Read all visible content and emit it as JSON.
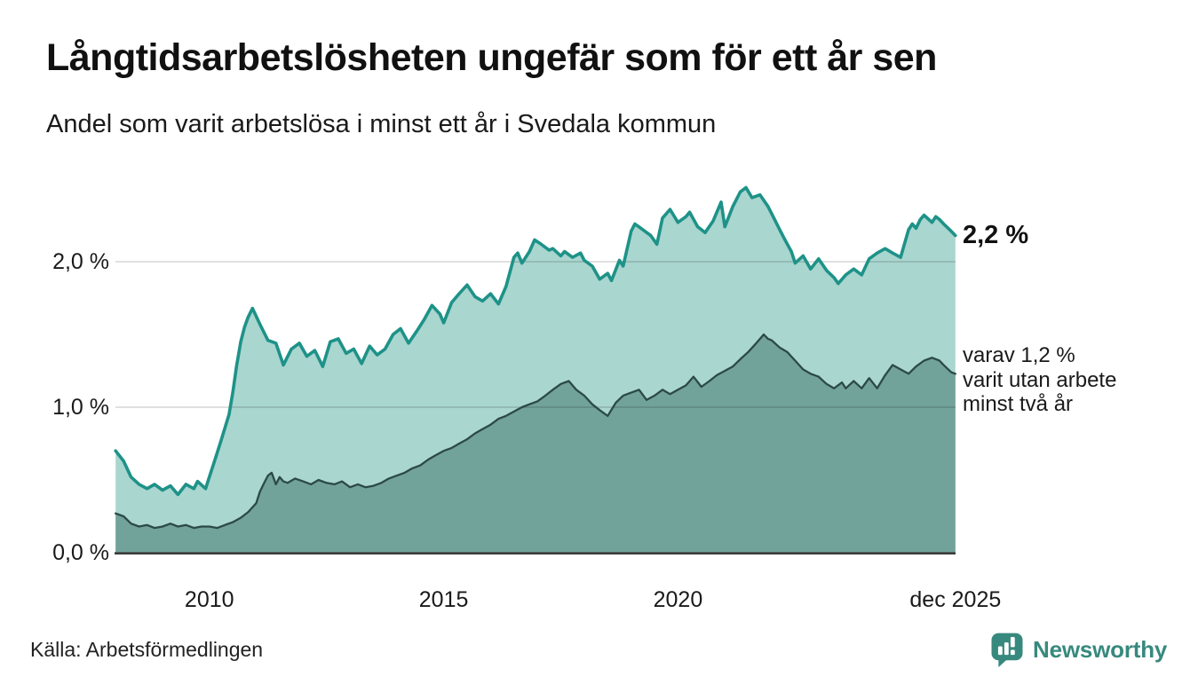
{
  "header": {
    "title": "Långtidsarbetslösheten ungefär som för ett år sen",
    "subtitle": "Andel som varit arbetslösa i minst ett år i Svedala kommun"
  },
  "footer": {
    "source": "Källa: Arbetsförmedlingen",
    "brand": "Newsworthy",
    "brand_color": "#37897e"
  },
  "chart_data": {
    "type": "area",
    "title": "Långtidsarbetslösheten ungefär som för ett år sen",
    "subtitle": "Andel som varit arbetslösa i minst ett år i Svedala kommun",
    "unit": "%",
    "grid": "horizontal",
    "x_axis": {
      "range_years": [
        2008.0,
        2025.92
      ],
      "ticks": [
        {
          "label": "2010",
          "t": 2010.0
        },
        {
          "label": "2015",
          "t": 2015.0
        },
        {
          "label": "2020",
          "t": 2020.0
        },
        {
          "label": "dec 2025",
          "t": 2025.92
        }
      ]
    },
    "y_axis": {
      "ylim": [
        0,
        2.62
      ],
      "ticks": [
        {
          "label": "2,0 %",
          "value": 2.0
        },
        {
          "label": "1,0 %",
          "value": 1.0
        },
        {
          "label": "0,0 %",
          "value": 0.0
        }
      ]
    },
    "annotations": {
      "end_value_label": "2,2 %",
      "end_value": 2.18,
      "note_lines": [
        "varav 1,2 %",
        "varit utan arbete",
        "minst två år"
      ]
    },
    "colors": {
      "line_one_year": "#1e9288",
      "fill_one_year": "#a9d6cf",
      "line_two_years": "#2c4a45",
      "fill_two_years": "#72a39b",
      "gridline": "rgba(0,0,0,0.14)",
      "baseline": "#3c3c3c"
    },
    "series": [
      {
        "name": "andel arbetslösa minst ett år",
        "end_value_pct": 2.2,
        "points": [
          [
            2008.0,
            0.7
          ],
          [
            2008.17,
            0.63
          ],
          [
            2008.33,
            0.52
          ],
          [
            2008.5,
            0.47
          ],
          [
            2008.67,
            0.44
          ],
          [
            2008.83,
            0.47
          ],
          [
            2009.0,
            0.43
          ],
          [
            2009.17,
            0.46
          ],
          [
            2009.33,
            0.4
          ],
          [
            2009.5,
            0.47
          ],
          [
            2009.67,
            0.44
          ],
          [
            2009.75,
            0.49
          ],
          [
            2009.92,
            0.44
          ],
          [
            2010.0,
            0.52
          ],
          [
            2010.08,
            0.6
          ],
          [
            2010.25,
            0.77
          ],
          [
            2010.42,
            0.95
          ],
          [
            2010.5,
            1.1
          ],
          [
            2010.58,
            1.28
          ],
          [
            2010.67,
            1.45
          ],
          [
            2010.75,
            1.55
          ],
          [
            2010.83,
            1.62
          ],
          [
            2010.92,
            1.68
          ],
          [
            2011.08,
            1.57
          ],
          [
            2011.25,
            1.46
          ],
          [
            2011.42,
            1.44
          ],
          [
            2011.58,
            1.29
          ],
          [
            2011.75,
            1.4
          ],
          [
            2011.92,
            1.44
          ],
          [
            2012.08,
            1.35
          ],
          [
            2012.25,
            1.39
          ],
          [
            2012.42,
            1.28
          ],
          [
            2012.58,
            1.45
          ],
          [
            2012.75,
            1.47
          ],
          [
            2012.92,
            1.37
          ],
          [
            2013.08,
            1.4
          ],
          [
            2013.25,
            1.3
          ],
          [
            2013.42,
            1.42
          ],
          [
            2013.58,
            1.36
          ],
          [
            2013.75,
            1.4
          ],
          [
            2013.92,
            1.5
          ],
          [
            2014.08,
            1.54
          ],
          [
            2014.25,
            1.44
          ],
          [
            2014.42,
            1.52
          ],
          [
            2014.58,
            1.6
          ],
          [
            2014.75,
            1.7
          ],
          [
            2014.92,
            1.64
          ],
          [
            2015.0,
            1.58
          ],
          [
            2015.17,
            1.72
          ],
          [
            2015.33,
            1.78
          ],
          [
            2015.5,
            1.84
          ],
          [
            2015.67,
            1.76
          ],
          [
            2015.83,
            1.73
          ],
          [
            2016.0,
            1.78
          ],
          [
            2016.17,
            1.71
          ],
          [
            2016.33,
            1.83
          ],
          [
            2016.5,
            2.03
          ],
          [
            2016.58,
            2.06
          ],
          [
            2016.67,
            1.99
          ],
          [
            2016.83,
            2.07
          ],
          [
            2016.94,
            2.15
          ],
          [
            2017.08,
            2.12
          ],
          [
            2017.25,
            2.08
          ],
          [
            2017.33,
            2.09
          ],
          [
            2017.5,
            2.04
          ],
          [
            2017.58,
            2.07
          ],
          [
            2017.75,
            2.03
          ],
          [
            2017.92,
            2.06
          ],
          [
            2018.0,
            2.01
          ],
          [
            2018.17,
            1.97
          ],
          [
            2018.33,
            1.88
          ],
          [
            2018.5,
            1.92
          ],
          [
            2018.58,
            1.87
          ],
          [
            2018.75,
            2.01
          ],
          [
            2018.83,
            1.97
          ],
          [
            2019.0,
            2.21
          ],
          [
            2019.08,
            2.26
          ],
          [
            2019.25,
            2.22
          ],
          [
            2019.42,
            2.18
          ],
          [
            2019.55,
            2.12
          ],
          [
            2019.67,
            2.3
          ],
          [
            2019.83,
            2.36
          ],
          [
            2020.0,
            2.27
          ],
          [
            2020.17,
            2.31
          ],
          [
            2020.25,
            2.34
          ],
          [
            2020.42,
            2.24
          ],
          [
            2020.58,
            2.2
          ],
          [
            2020.75,
            2.28
          ],
          [
            2020.92,
            2.41
          ],
          [
            2021.0,
            2.24
          ],
          [
            2021.17,
            2.38
          ],
          [
            2021.33,
            2.48
          ],
          [
            2021.45,
            2.51
          ],
          [
            2021.58,
            2.44
          ],
          [
            2021.75,
            2.46
          ],
          [
            2021.92,
            2.38
          ],
          [
            2022.0,
            2.33
          ],
          [
            2022.17,
            2.22
          ],
          [
            2022.25,
            2.17
          ],
          [
            2022.42,
            2.07
          ],
          [
            2022.5,
            1.99
          ],
          [
            2022.67,
            2.04
          ],
          [
            2022.83,
            1.95
          ],
          [
            2023.0,
            2.02
          ],
          [
            2023.17,
            1.94
          ],
          [
            2023.33,
            1.89
          ],
          [
            2023.42,
            1.85
          ],
          [
            2023.58,
            1.91
          ],
          [
            2023.75,
            1.95
          ],
          [
            2023.92,
            1.91
          ],
          [
            2024.08,
            2.02
          ],
          [
            2024.25,
            2.06
          ],
          [
            2024.42,
            2.09
          ],
          [
            2024.58,
            2.06
          ],
          [
            2024.75,
            2.03
          ],
          [
            2024.92,
            2.22
          ],
          [
            2025.0,
            2.26
          ],
          [
            2025.08,
            2.23
          ],
          [
            2025.17,
            2.29
          ],
          [
            2025.25,
            2.32
          ],
          [
            2025.42,
            2.27
          ],
          [
            2025.5,
            2.31
          ],
          [
            2025.58,
            2.29
          ],
          [
            2025.67,
            2.26
          ],
          [
            2025.83,
            2.21
          ],
          [
            2025.92,
            2.18
          ]
        ]
      },
      {
        "name": "varav utan arbete minst två år",
        "end_value_pct": 1.2,
        "points": [
          [
            2008.0,
            0.27
          ],
          [
            2008.17,
            0.25
          ],
          [
            2008.33,
            0.2
          ],
          [
            2008.5,
            0.18
          ],
          [
            2008.67,
            0.19
          ],
          [
            2008.83,
            0.17
          ],
          [
            2009.0,
            0.18
          ],
          [
            2009.17,
            0.2
          ],
          [
            2009.33,
            0.18
          ],
          [
            2009.5,
            0.19
          ],
          [
            2009.67,
            0.17
          ],
          [
            2009.83,
            0.18
          ],
          [
            2010.0,
            0.18
          ],
          [
            2010.17,
            0.17
          ],
          [
            2010.33,
            0.19
          ],
          [
            2010.5,
            0.21
          ],
          [
            2010.67,
            0.24
          ],
          [
            2010.83,
            0.28
          ],
          [
            2011.0,
            0.34
          ],
          [
            2011.08,
            0.42
          ],
          [
            2011.17,
            0.48
          ],
          [
            2011.25,
            0.53
          ],
          [
            2011.33,
            0.55
          ],
          [
            2011.42,
            0.47
          ],
          [
            2011.5,
            0.52
          ],
          [
            2011.58,
            0.49
          ],
          [
            2011.67,
            0.48
          ],
          [
            2011.83,
            0.51
          ],
          [
            2012.0,
            0.49
          ],
          [
            2012.17,
            0.47
          ],
          [
            2012.33,
            0.5
          ],
          [
            2012.5,
            0.48
          ],
          [
            2012.67,
            0.47
          ],
          [
            2012.83,
            0.49
          ],
          [
            2013.0,
            0.45
          ],
          [
            2013.17,
            0.47
          ],
          [
            2013.33,
            0.45
          ],
          [
            2013.5,
            0.46
          ],
          [
            2013.67,
            0.48
          ],
          [
            2013.83,
            0.51
          ],
          [
            2014.0,
            0.53
          ],
          [
            2014.17,
            0.55
          ],
          [
            2014.33,
            0.58
          ],
          [
            2014.5,
            0.6
          ],
          [
            2014.67,
            0.64
          ],
          [
            2014.83,
            0.67
          ],
          [
            2015.0,
            0.7
          ],
          [
            2015.17,
            0.72
          ],
          [
            2015.33,
            0.75
          ],
          [
            2015.5,
            0.78
          ],
          [
            2015.67,
            0.82
          ],
          [
            2015.83,
            0.85
          ],
          [
            2016.0,
            0.88
          ],
          [
            2016.17,
            0.92
          ],
          [
            2016.33,
            0.94
          ],
          [
            2016.5,
            0.97
          ],
          [
            2016.67,
            1.0
          ],
          [
            2016.83,
            1.02
          ],
          [
            2017.0,
            1.04
          ],
          [
            2017.17,
            1.08
          ],
          [
            2017.33,
            1.12
          ],
          [
            2017.5,
            1.16
          ],
          [
            2017.67,
            1.18
          ],
          [
            2017.83,
            1.12
          ],
          [
            2018.0,
            1.08
          ],
          [
            2018.17,
            1.02
          ],
          [
            2018.33,
            0.98
          ],
          [
            2018.5,
            0.94
          ],
          [
            2018.67,
            1.03
          ],
          [
            2018.83,
            1.08
          ],
          [
            2019.0,
            1.1
          ],
          [
            2019.17,
            1.12
          ],
          [
            2019.33,
            1.05
          ],
          [
            2019.5,
            1.08
          ],
          [
            2019.67,
            1.12
          ],
          [
            2019.83,
            1.09
          ],
          [
            2020.0,
            1.12
          ],
          [
            2020.17,
            1.15
          ],
          [
            2020.33,
            1.21
          ],
          [
            2020.5,
            1.14
          ],
          [
            2020.67,
            1.18
          ],
          [
            2020.83,
            1.22
          ],
          [
            2021.0,
            1.25
          ],
          [
            2021.17,
            1.28
          ],
          [
            2021.33,
            1.33
          ],
          [
            2021.5,
            1.38
          ],
          [
            2021.67,
            1.44
          ],
          [
            2021.83,
            1.5
          ],
          [
            2021.92,
            1.47
          ],
          [
            2022.0,
            1.46
          ],
          [
            2022.17,
            1.41
          ],
          [
            2022.33,
            1.38
          ],
          [
            2022.5,
            1.32
          ],
          [
            2022.67,
            1.26
          ],
          [
            2022.83,
            1.23
          ],
          [
            2023.0,
            1.21
          ],
          [
            2023.17,
            1.16
          ],
          [
            2023.33,
            1.13
          ],
          [
            2023.5,
            1.17
          ],
          [
            2023.58,
            1.13
          ],
          [
            2023.75,
            1.18
          ],
          [
            2023.92,
            1.13
          ],
          [
            2024.08,
            1.2
          ],
          [
            2024.25,
            1.13
          ],
          [
            2024.42,
            1.22
          ],
          [
            2024.58,
            1.29
          ],
          [
            2024.75,
            1.26
          ],
          [
            2024.92,
            1.23
          ],
          [
            2025.08,
            1.28
          ],
          [
            2025.25,
            1.32
          ],
          [
            2025.42,
            1.34
          ],
          [
            2025.58,
            1.32
          ],
          [
            2025.67,
            1.29
          ],
          [
            2025.83,
            1.24
          ],
          [
            2025.92,
            1.23
          ]
        ]
      }
    ]
  }
}
